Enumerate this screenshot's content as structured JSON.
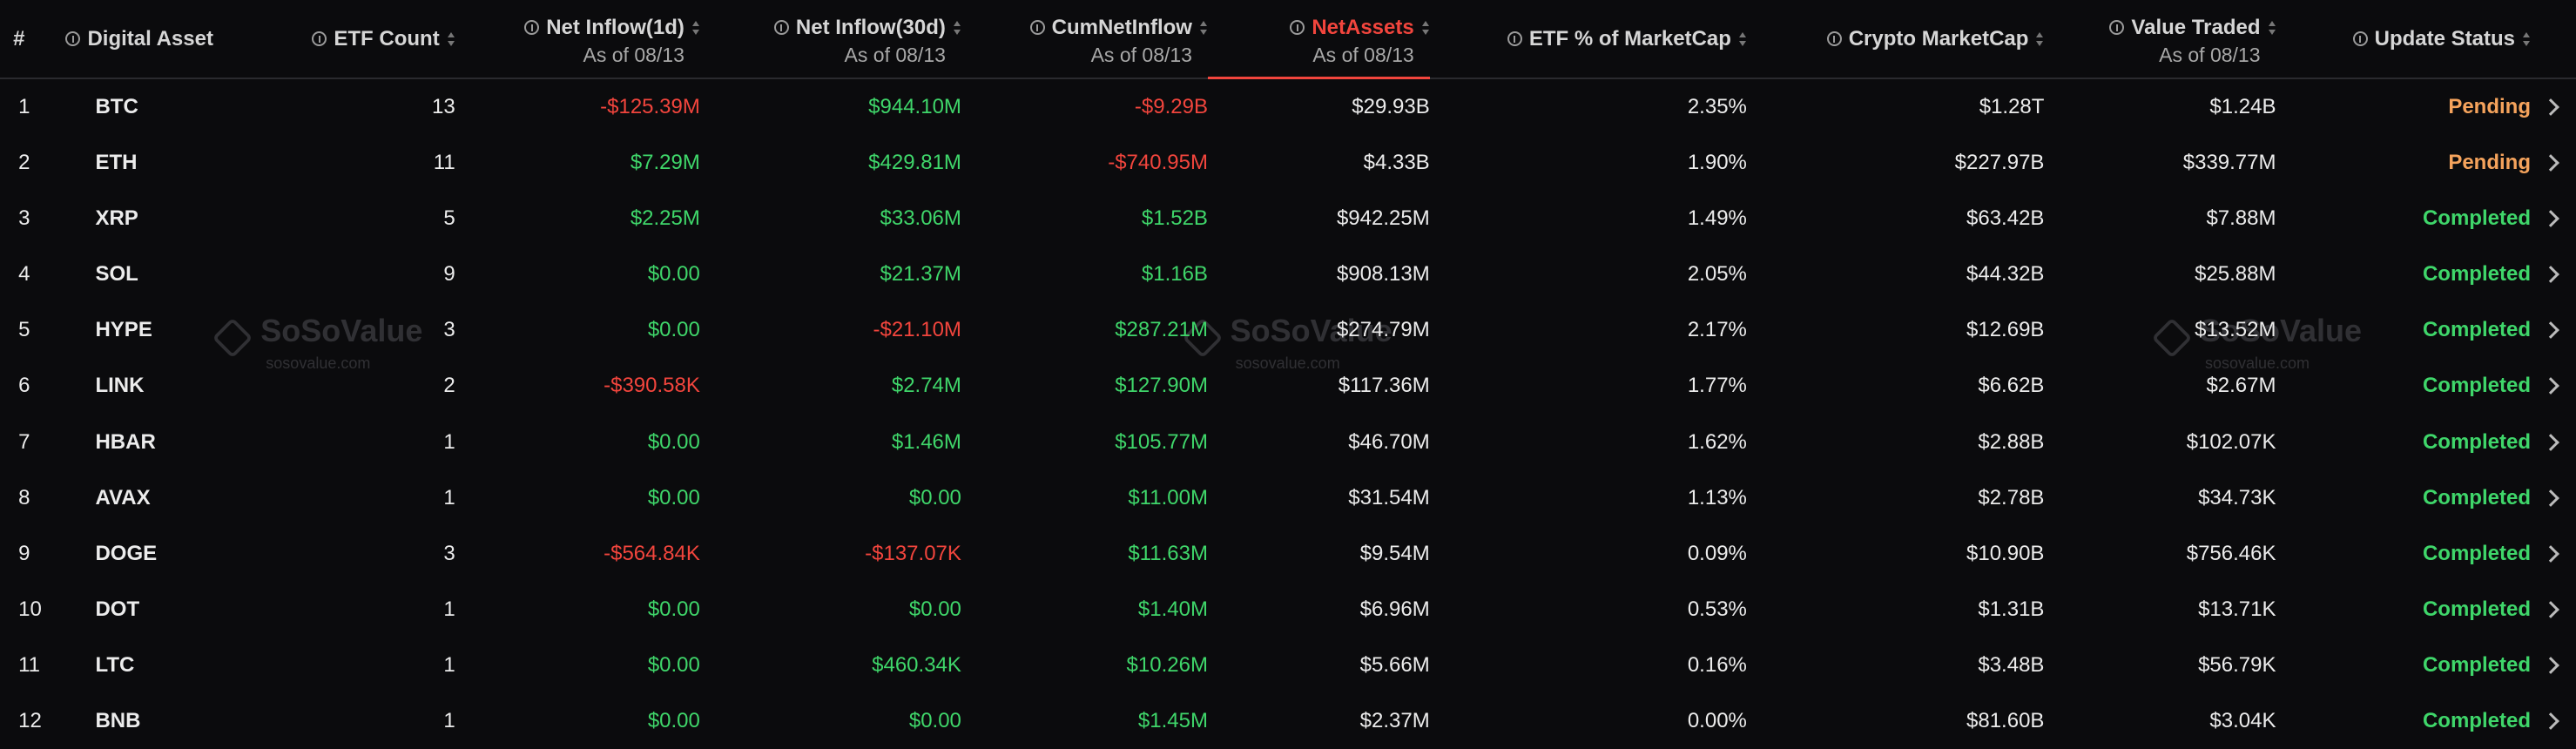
{
  "header": {
    "columns": [
      {
        "label": "#"
      },
      {
        "label": "Digital Asset"
      },
      {
        "label": "ETF Count"
      },
      {
        "label": "Net Inflow(1d)",
        "sub": "As of 08/13"
      },
      {
        "label": "Net Inflow(30d)",
        "sub": "As of 08/13"
      },
      {
        "label": "CumNetInflow",
        "sub": "As of 08/13"
      },
      {
        "label": "NetAssets",
        "sub": "As of 08/13"
      },
      {
        "label": "ETF % of MarketCap"
      },
      {
        "label": "Crypto MarketCap"
      },
      {
        "label": "Value Traded",
        "sub": "As of 08/13"
      },
      {
        "label": "Update Status"
      }
    ]
  },
  "table": {
    "rows": [
      [
        1,
        "BTC",
        13,
        "-$125.39M",
        "$944.10M",
        "-$9.29B",
        "$29.93B",
        "2.35%",
        "$1.28T",
        "$1.24B",
        "Pending"
      ],
      [
        2,
        "ETH",
        11,
        "$7.29M",
        "$429.81M",
        "-$740.95M",
        "$4.33B",
        "1.90%",
        "$227.97B",
        "$339.77M",
        "Pending"
      ],
      [
        3,
        "XRP",
        5,
        "$2.25M",
        "$33.06M",
        "$1.52B",
        "$942.25M",
        "1.49%",
        "$63.42B",
        "$7.88M",
        "Completed"
      ],
      [
        4,
        "SOL",
        9,
        "$0.00",
        "$21.37M",
        "$1.16B",
        "$908.13M",
        "2.05%",
        "$44.32B",
        "$25.88M",
        "Completed"
      ],
      [
        5,
        "HYPE",
        3,
        "$0.00",
        "-$21.10M",
        "$287.21M",
        "$274.79M",
        "2.17%",
        "$12.69B",
        "$13.52M",
        "Completed"
      ],
      [
        6,
        "LINK",
        2,
        "-$390.58K",
        "$2.74M",
        "$127.90M",
        "$117.36M",
        "1.77%",
        "$6.62B",
        "$2.67M",
        "Completed"
      ],
      [
        7,
        "HBAR",
        1,
        "$0.00",
        "$1.46M",
        "$105.77M",
        "$46.70M",
        "1.62%",
        "$2.88B",
        "$102.07K",
        "Completed"
      ],
      [
        8,
        "AVAX",
        1,
        "$0.00",
        "$0.00",
        "$11.00M",
        "$31.54M",
        "1.13%",
        "$2.78B",
        "$34.73K",
        "Completed"
      ],
      [
        9,
        "DOGE",
        3,
        "-$564.84K",
        "-$137.07K",
        "$11.63M",
        "$9.54M",
        "0.09%",
        "$10.90B",
        "$756.46K",
        "Completed"
      ],
      [
        10,
        "DOT",
        1,
        "$0.00",
        "$0.00",
        "$1.40M",
        "$6.96M",
        "0.53%",
        "$1.31B",
        "$13.71K",
        "Completed"
      ],
      [
        11,
        "LTC",
        1,
        "$0.00",
        "$460.34K",
        "$10.26M",
        "$5.66M",
        "0.16%",
        "$3.48B",
        "$56.79K",
        "Completed"
      ],
      [
        12,
        "BNB",
        1,
        "$0.00",
        "$0.00",
        "$1.45M",
        "$2.37M",
        "0.00%",
        "$81.60B",
        "$3.04K",
        "Completed"
      ]
    ]
  },
  "watermark": {
    "brand": "SoSoValue",
    "site": "sosovalue.com"
  }
}
